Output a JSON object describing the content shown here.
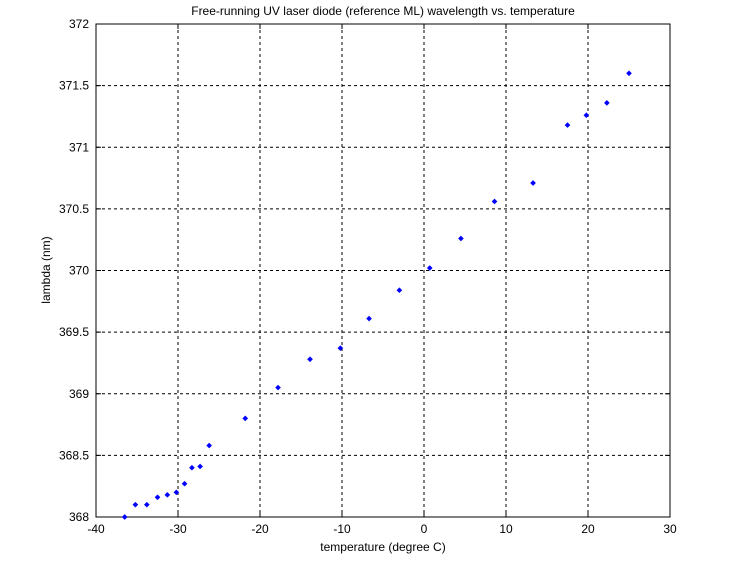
{
  "chart_data": {
    "type": "scatter",
    "title": "Free-running UV laser diode (reference ML) wavelength vs. temperature",
    "xlabel": "temperature (degree C)",
    "ylabel": "lambda (nm)",
    "xlim": [
      -40,
      30
    ],
    "ylim": [
      368,
      372
    ],
    "xticks": [
      "-40",
      "-30",
      "-20",
      "-10",
      "0",
      "10",
      "20",
      "30"
    ],
    "yticks": [
      "368",
      "368.5",
      "369",
      "369.5",
      "370",
      "370.5",
      "371",
      "371.5",
      "372"
    ],
    "grid": true,
    "marker_color": "#0000ff",
    "series": [
      {
        "x": [
          -36.5,
          -35.2,
          -33.8,
          -32.5,
          -31.3,
          -30.2,
          -29.2,
          -28.3,
          -27.3,
          -26.2,
          -21.8,
          -17.8,
          -13.9,
          -10.2,
          -6.7,
          -3.0,
          0.7,
          4.5,
          8.6,
          13.3,
          17.5,
          19.8,
          22.3,
          25.0
        ],
        "y": [
          368.0,
          368.1,
          368.1,
          368.16,
          368.18,
          368.2,
          368.27,
          368.4,
          368.41,
          368.58,
          368.8,
          369.05,
          369.28,
          369.37,
          369.61,
          369.84,
          370.02,
          370.26,
          370.56,
          370.71,
          371.18,
          371.26,
          371.36,
          371.6
        ]
      }
    ]
  }
}
